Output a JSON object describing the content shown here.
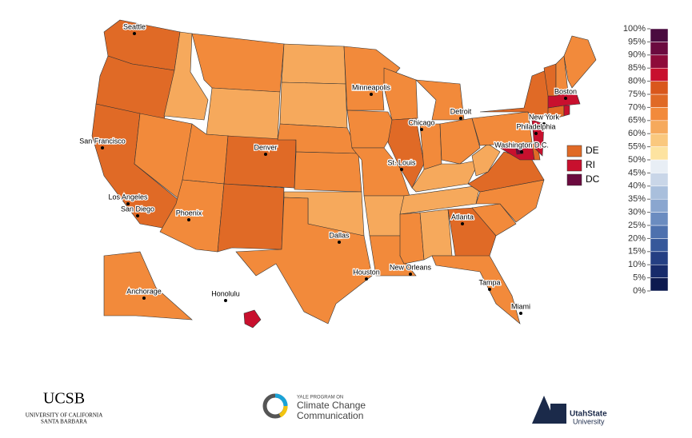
{
  "chart_data": {
    "type": "choropleth",
    "regions": [
      {
        "value": 72
      },
      {
        "value": 72
      },
      {
        "value": 72
      },
      {
        "value": 67
      },
      {
        "value": 62
      },
      {
        "value": 67
      },
      {
        "value": 62
      },
      {
        "value": 67
      },
      {
        "value": 72
      },
      {
        "value": 67
      },
      {
        "value": 72
      },
      {
        "value": 62
      },
      {
        "value": 62
      },
      {
        "value": 67
      },
      {
        "value": 67
      },
      {
        "value": 62
      },
      {
        "value": 67
      },
      {
        "value": 67
      },
      {
        "value": 67
      },
      {
        "value": 67
      },
      {
        "value": 62
      },
      {
        "value": 67
      },
      {
        "value": 67
      },
      {
        "value": 72
      },
      {
        "value": 67
      },
      {
        "value": 67
      },
      {
        "value": 67
      },
      {
        "value": 62
      },
      {
        "value": 62
      },
      {
        "value": 67
      },
      {
        "value": 62
      },
      {
        "value": 72
      },
      {
        "value": 67
      },
      {
        "value": 67
      },
      {
        "value": 67
      },
      {
        "value": 72
      },
      {
        "value": 62
      },
      {
        "value": 67
      },
      {
        "value": 72
      },
      {
        "value": 82
      },
      {
        "label": "DE",
        "value": 72
      },
      {
        "value": 82
      },
      {
        "value": 72
      },
      {
        "label": "RI",
        "value": 82
      },
      {
        "value": 82
      },
      {
        "value": 72
      },
      {
        "value": 67
      },
      {
        "value": 67
      },
      {
        "value": 67
      },
      {
        "value": 82
      },
      {
        "label": "DC",
        "value": 91
      }
    ],
    "cities": [
      "Seattle",
      "San Francisco",
      "Los Angeles",
      "San Diego",
      "Phoenix",
      "Denver",
      "Dallas",
      "Houston",
      "St. Louis",
      "Minneapolis",
      "Chicago",
      "Detroit",
      "Atlanta",
      "New Orleans",
      "Tampa",
      "Miami",
      "Anchorage",
      "Honolulu",
      "New York",
      "Philadelphia",
      "Washington D.C.",
      "Boston"
    ],
    "legend_ticks": [
      {
        "value": 0,
        "label": "0%"
      },
      {
        "value": 5,
        "label": "5%"
      },
      {
        "value": 10,
        "label": "10%"
      },
      {
        "value": 15,
        "label": "15%"
      },
      {
        "value": 20,
        "label": "20%"
      },
      {
        "value": 25,
        "label": "25%"
      },
      {
        "value": 30,
        "label": "30%"
      },
      {
        "value": 35,
        "label": "35%"
      },
      {
        "value": 40,
        "label": "40%"
      },
      {
        "value": 45,
        "label": "45%"
      },
      {
        "value": 50,
        "label": "50%"
      },
      {
        "value": 55,
        "label": "55%"
      },
      {
        "value": 60,
        "label": "60%"
      },
      {
        "value": 65,
        "label": "65%"
      },
      {
        "value": 70,
        "label": "70%"
      },
      {
        "value": 75,
        "label": "75%"
      },
      {
        "value": 80,
        "label": "80%"
      },
      {
        "value": 85,
        "label": "85%"
      },
      {
        "value": 90,
        "label": "90%"
      },
      {
        "value": 95,
        "label": "95%"
      },
      {
        "value": 100,
        "label": "100%"
      }
    ],
    "legend_colors": [
      "#0d1a4f",
      "#172b6b",
      "#243f83",
      "#36589a",
      "#4e71ae",
      "#6b8cc0",
      "#8aa6cf",
      "#a9bfdc",
      "#c9d6e8",
      "#e8eef5",
      "#fde3a0",
      "#fac87e",
      "#f6a95c",
      "#f28a3b",
      "#e06a26",
      "#d9571c",
      "#c8102e",
      "#8e0b3a",
      "#6b0a3f",
      "#4a0b3f"
    ]
  },
  "logos": {
    "ucsb": "UCSB",
    "ucsb_sub1": "UNIVERSITY OF CALIFORNIA",
    "ucsb_sub2": "SANTA BARBARA",
    "yale_small": "YALE PROGRAM ON",
    "yale_line1": "Climate Change",
    "yale_line2": "Communication",
    "usu_line1": "UtahState",
    "usu_line2": "University"
  }
}
